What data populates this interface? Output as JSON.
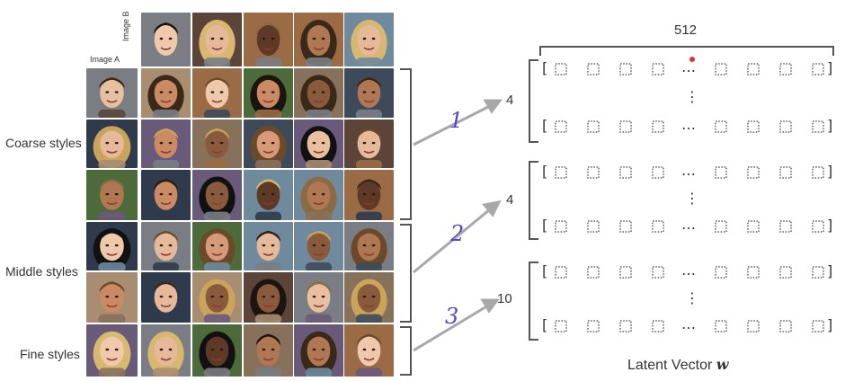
{
  "header": {
    "image_b_label": "Image B",
    "image_a_label": "Image A"
  },
  "rows": [
    {
      "label": "Coarse styles"
    },
    {
      "label": "Middle styles"
    },
    {
      "label": "Fine styles"
    }
  ],
  "latent": {
    "width_label": "512",
    "groups": [
      {
        "count": "4",
        "annotation": "1"
      },
      {
        "count": "4",
        "annotation": "2"
      },
      {
        "count": "10",
        "annotation": "3"
      }
    ],
    "ellipsis_h": "…",
    "ellipsis_v": "⋮",
    "bracket_open": "[",
    "bracket_close": "]",
    "caption_text": "Latent Vector ",
    "caption_var": "w"
  },
  "colors": {
    "arrow": "#a8a8a8",
    "bracket": "#555555",
    "annotation": "#5b3fd6",
    "red_dot": "#e5302a"
  }
}
